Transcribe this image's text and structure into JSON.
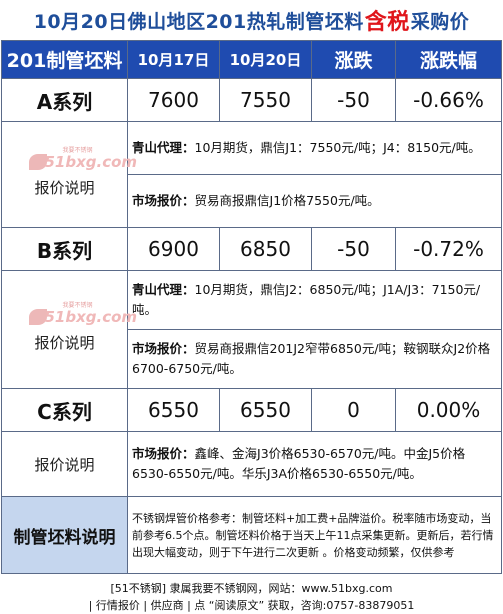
{
  "title": {
    "part1": "10月20日佛山地区201热轧制管坯料",
    "highlight": "含税",
    "part2": "采购价"
  },
  "header": {
    "col1": "201制管坯料",
    "col2": "10月17日",
    "col3": "10月20日",
    "col4": "涨跌",
    "col5": "涨跌幅"
  },
  "rows": [
    {
      "name": "A系列",
      "price_prev": "7600",
      "price_now": "7550",
      "change": "-50",
      "change_pct": "-0.66%",
      "label": "报价说明",
      "logo": "51bxg.com",
      "logo_small": "我要不锈钢",
      "details": [
        {
          "key": "青山代理：",
          "text": "10月期货，鼎信J1：7550元/吨；J4：8150元/吨。"
        },
        {
          "key": "市场报价：",
          "text": "贸易商报鼎信J1价格7550元/吨。"
        }
      ]
    },
    {
      "name": "B系列",
      "price_prev": "6900",
      "price_now": "6850",
      "change": "-50",
      "change_pct": "-0.72%",
      "label": "报价说明",
      "logo": "51bxg.com",
      "logo_small": "我要不锈钢",
      "details": [
        {
          "key": "青山代理：",
          "text": "10月期货，鼎信J2：6850元/吨；J1A/J3：7150元/吨。"
        },
        {
          "key": "市场报价：",
          "text": "贸易商报鼎信201J2窄带6850元/吨；鞍钢联众J2价格6700-6750元/吨。"
        }
      ]
    },
    {
      "name": "C系列",
      "price_prev": "6550",
      "price_now": "6550",
      "change": "0",
      "change_pct": "0.00%",
      "label": "报价说明",
      "details": [
        {
          "key": "市场报价：",
          "text": "鑫峰、金海J3价格6530-6570元/吨。中金J5价格6530-6550元/吨。华乐J3A价格6530-6550元/吨。"
        }
      ]
    }
  ],
  "note": {
    "label": "制管坯料说明",
    "text": "不锈钢焊管价格参考：制管坯料+加工费+品牌溢价。税率随市场变动，当前参考6.5个点。制管坯料价格于当天上午11点采集更新。更新后，若行情出现大幅变动，则于下午进行二次更新 。价格变动频繁，仅供参考"
  },
  "footer": {
    "line1": "[51不锈钢] 隶属我要不锈钢网，网站：www.51bxg.com",
    "line2": "| 行情报价 | 供应商 | 点 “阅读原文” 获取，咨询:0757-83879051"
  }
}
